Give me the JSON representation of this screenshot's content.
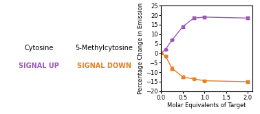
{
  "chart_data": {
    "type": "line",
    "xlabel": "Molar Equivalents of Target",
    "ylabel": "Percentage Change in Emission",
    "x": [
      0,
      0.1,
      0.25,
      0.5,
      0.75,
      1.0,
      2.0
    ],
    "series": [
      {
        "color": "#9B59B6",
        "marker": "o",
        "values": [
          0,
          2,
          7,
          14,
          18.5,
          19,
          18.5
        ],
        "yerr": [
          0.2,
          0.3,
          0.5,
          0.8,
          0.8,
          0.7,
          0.8
        ]
      },
      {
        "color": "#E67E22",
        "marker": "o",
        "values": [
          0,
          -1.5,
          -8,
          -12.5,
          -13.5,
          -14.5,
          -15
        ],
        "yerr": [
          0.2,
          0.5,
          0.8,
          0.7,
          0.5,
          0.5,
          0.8
        ]
      }
    ],
    "xlim": [
      0,
      2.1
    ],
    "ylim": [
      -20,
      25
    ],
    "xticks": [
      {
        "value": 0,
        "label": "0.0"
      },
      0.5,
      {
        "value": 1,
        "label": "1.0"
      },
      1.5,
      {
        "value": 2,
        "label": "2.0"
      }
    ],
    "yticks": [
      {
        "value": -20,
        "label": "−20"
      },
      {
        "value": -15,
        "label": "−15"
      },
      {
        "value": -10,
        "label": "−10"
      },
      {
        "value": -5,
        "label": "−5"
      },
      0,
      5,
      10,
      15,
      20,
      25
    ],
    "annotations": [
      {
        "text": "Cytosine"
      },
      {
        "text": "SIGNAL UP",
        "color": "#9B59B6"
      },
      {
        "text": "5-Methylcytosine"
      },
      {
        "text": "SIGNAL DOWN",
        "color": "#E67E22"
      }
    ],
    "grid": false
  }
}
